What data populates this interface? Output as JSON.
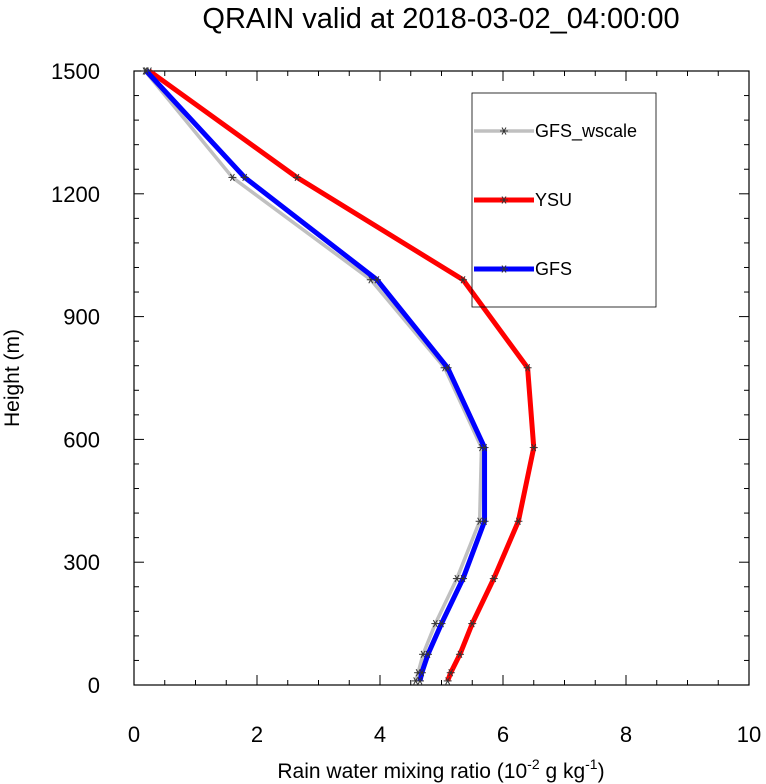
{
  "chart_data": {
    "type": "line",
    "title": "QRAIN valid at 2018-03-02_04:00:00",
    "xlabel": "Rain water mixing ratio (10",
    "xlabel_sup1": "-2",
    "xlabel_mid": " g kg",
    "xlabel_sup2": "-1",
    "xlabel_end": ")",
    "ylabel": "Height (m)",
    "xlim": [
      0,
      10
    ],
    "ylim": [
      0,
      1500
    ],
    "xticks": [
      "0",
      "2",
      "4",
      "6",
      "8",
      "10"
    ],
    "yticks": [
      "0",
      "300",
      "600",
      "900",
      "1200",
      "1500"
    ],
    "grid": false,
    "legend_position": "top-right",
    "series": [
      {
        "name": "GFS_wscale",
        "color": "#c0c0c0",
        "marker": "asterisk",
        "x": [
          4.58,
          4.62,
          4.7,
          4.9,
          5.25,
          5.62,
          5.65,
          5.05,
          3.85,
          1.6,
          0.18
        ],
        "y": [
          10,
          30,
          75,
          150,
          260,
          400,
          580,
          775,
          990,
          1240,
          1500
        ]
      },
      {
        "name": "YSU",
        "color": "#ff0000",
        "marker": "asterisk",
        "x": [
          5.1,
          5.15,
          5.3,
          5.5,
          5.85,
          6.25,
          6.5,
          6.4,
          5.35,
          2.65,
          0.25
        ],
        "y": [
          10,
          30,
          75,
          150,
          260,
          400,
          580,
          775,
          990,
          1240,
          1500
        ]
      },
      {
        "name": "GFS",
        "color": "#0000ff",
        "marker": "asterisk",
        "x": [
          4.65,
          4.68,
          4.78,
          5.0,
          5.35,
          5.7,
          5.7,
          5.1,
          3.95,
          1.8,
          0.2
        ],
        "y": [
          10,
          30,
          75,
          150,
          260,
          400,
          580,
          775,
          990,
          1240,
          1500
        ]
      }
    ]
  }
}
